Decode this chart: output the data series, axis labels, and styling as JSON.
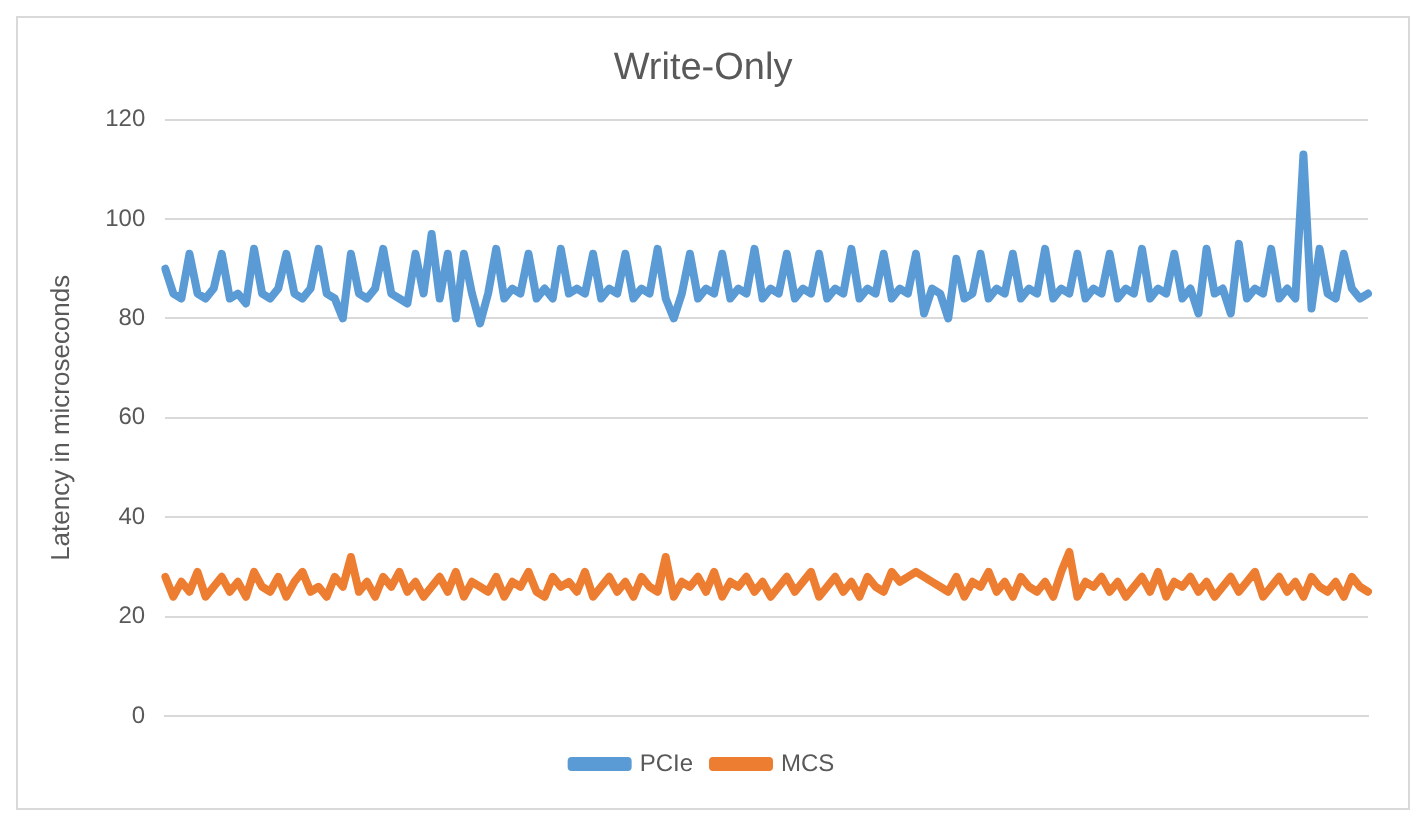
{
  "chart_data": {
    "type": "line",
    "title": "Write-Only",
    "ylabel": "Latency in microseconds",
    "categories": [
      null,
      null,
      null,
      null,
      null,
      null,
      null,
      null,
      null,
      null,
      null,
      null,
      null,
      null,
      null,
      null,
      null,
      null,
      null,
      null,
      null,
      null,
      null,
      null,
      null,
      null,
      null,
      null,
      null,
      null,
      null,
      null,
      null,
      null,
      null,
      null,
      null,
      null,
      null,
      null,
      null,
      null,
      null,
      null,
      null,
      null,
      null,
      null,
      null,
      null,
      null,
      null,
      null,
      null,
      null,
      null,
      null,
      null,
      null,
      null,
      null,
      null,
      null,
      null,
      null,
      null,
      null,
      null,
      null,
      null,
      null,
      null,
      null,
      null,
      null,
      null,
      null,
      null,
      null,
      null,
      null,
      null,
      null,
      null,
      null,
      null,
      null,
      null,
      null,
      null,
      null,
      null,
      null,
      null,
      null,
      null,
      null,
      null,
      null,
      null,
      null,
      null,
      null,
      null,
      null,
      null,
      null,
      null,
      null,
      null,
      null,
      null,
      null,
      null,
      null,
      null,
      null,
      null,
      null,
      null,
      null,
      null,
      null,
      null,
      null,
      null,
      null,
      null,
      null,
      null,
      null,
      null,
      null,
      null,
      null,
      null,
      null,
      null,
      null,
      null,
      null,
      null,
      null,
      null,
      null,
      null,
      null,
      null,
      null,
      null
    ],
    "series": [
      {
        "name": "PCIe",
        "color": "#5b9bd5",
        "values": [
          90,
          85,
          84,
          93,
          85,
          84,
          86,
          93,
          84,
          85,
          83,
          94,
          85,
          84,
          86,
          93,
          85,
          84,
          86,
          94,
          85,
          84,
          80,
          93,
          85,
          84,
          86,
          94,
          85,
          84,
          83,
          93,
          85,
          97,
          84,
          93,
          80,
          93,
          85,
          79,
          85,
          94,
          84,
          86,
          85,
          93,
          84,
          86,
          84,
          94,
          85,
          86,
          85,
          93,
          84,
          86,
          85,
          93,
          84,
          86,
          85,
          94,
          84,
          80,
          85,
          93,
          84,
          86,
          85,
          93,
          84,
          86,
          85,
          94,
          84,
          86,
          85,
          93,
          84,
          86,
          85,
          93,
          84,
          86,
          85,
          94,
          84,
          86,
          85,
          93,
          84,
          86,
          85,
          93,
          81,
          86,
          85,
          80,
          92,
          84,
          85,
          93,
          84,
          86,
          85,
          93,
          84,
          86,
          85,
          94,
          84,
          86,
          85,
          93,
          84,
          86,
          85,
          93,
          84,
          86,
          85,
          94,
          84,
          86,
          85,
          93,
          84,
          86,
          81,
          94,
          85,
          86,
          81,
          95,
          84,
          86,
          85,
          94,
          84,
          86,
          84,
          113,
          82,
          94,
          85,
          84,
          93,
          86,
          84,
          85
        ]
      },
      {
        "name": "MCS",
        "color": "#ed7d31",
        "values": [
          28,
          24,
          27,
          25,
          29,
          24,
          26,
          28,
          25,
          27,
          24,
          29,
          26,
          25,
          28,
          24,
          27,
          29,
          25,
          26,
          24,
          28,
          26,
          32,
          25,
          27,
          24,
          28,
          26,
          29,
          25,
          27,
          24,
          26,
          28,
          25,
          29,
          24,
          27,
          26,
          25,
          28,
          24,
          27,
          26,
          29,
          25,
          24,
          28,
          26,
          27,
          25,
          29,
          24,
          26,
          28,
          25,
          27,
          24,
          28,
          26,
          25,
          32,
          24,
          27,
          26,
          28,
          25,
          29,
          24,
          27,
          26,
          28,
          25,
          27,
          24,
          26,
          28,
          25,
          27,
          29,
          24,
          26,
          28,
          25,
          27,
          24,
          28,
          26,
          25,
          29,
          27,
          28,
          29,
          28,
          27,
          26,
          25,
          28,
          24,
          27,
          26,
          29,
          25,
          27,
          24,
          28,
          26,
          25,
          27,
          24,
          29,
          33,
          24,
          27,
          26,
          28,
          25,
          27,
          24,
          26,
          28,
          25,
          29,
          24,
          27,
          26,
          28,
          25,
          27,
          24,
          26,
          28,
          25,
          27,
          29,
          24,
          26,
          28,
          25,
          27,
          24,
          28,
          26,
          25,
          27,
          24,
          28,
          26,
          25
        ]
      }
    ],
    "ylim": [
      0,
      120
    ],
    "yticks": [
      0,
      20,
      40,
      60,
      80,
      100,
      120
    ],
    "grid": "y",
    "legend": "bottom",
    "marker": "none",
    "line_style": "solid"
  }
}
